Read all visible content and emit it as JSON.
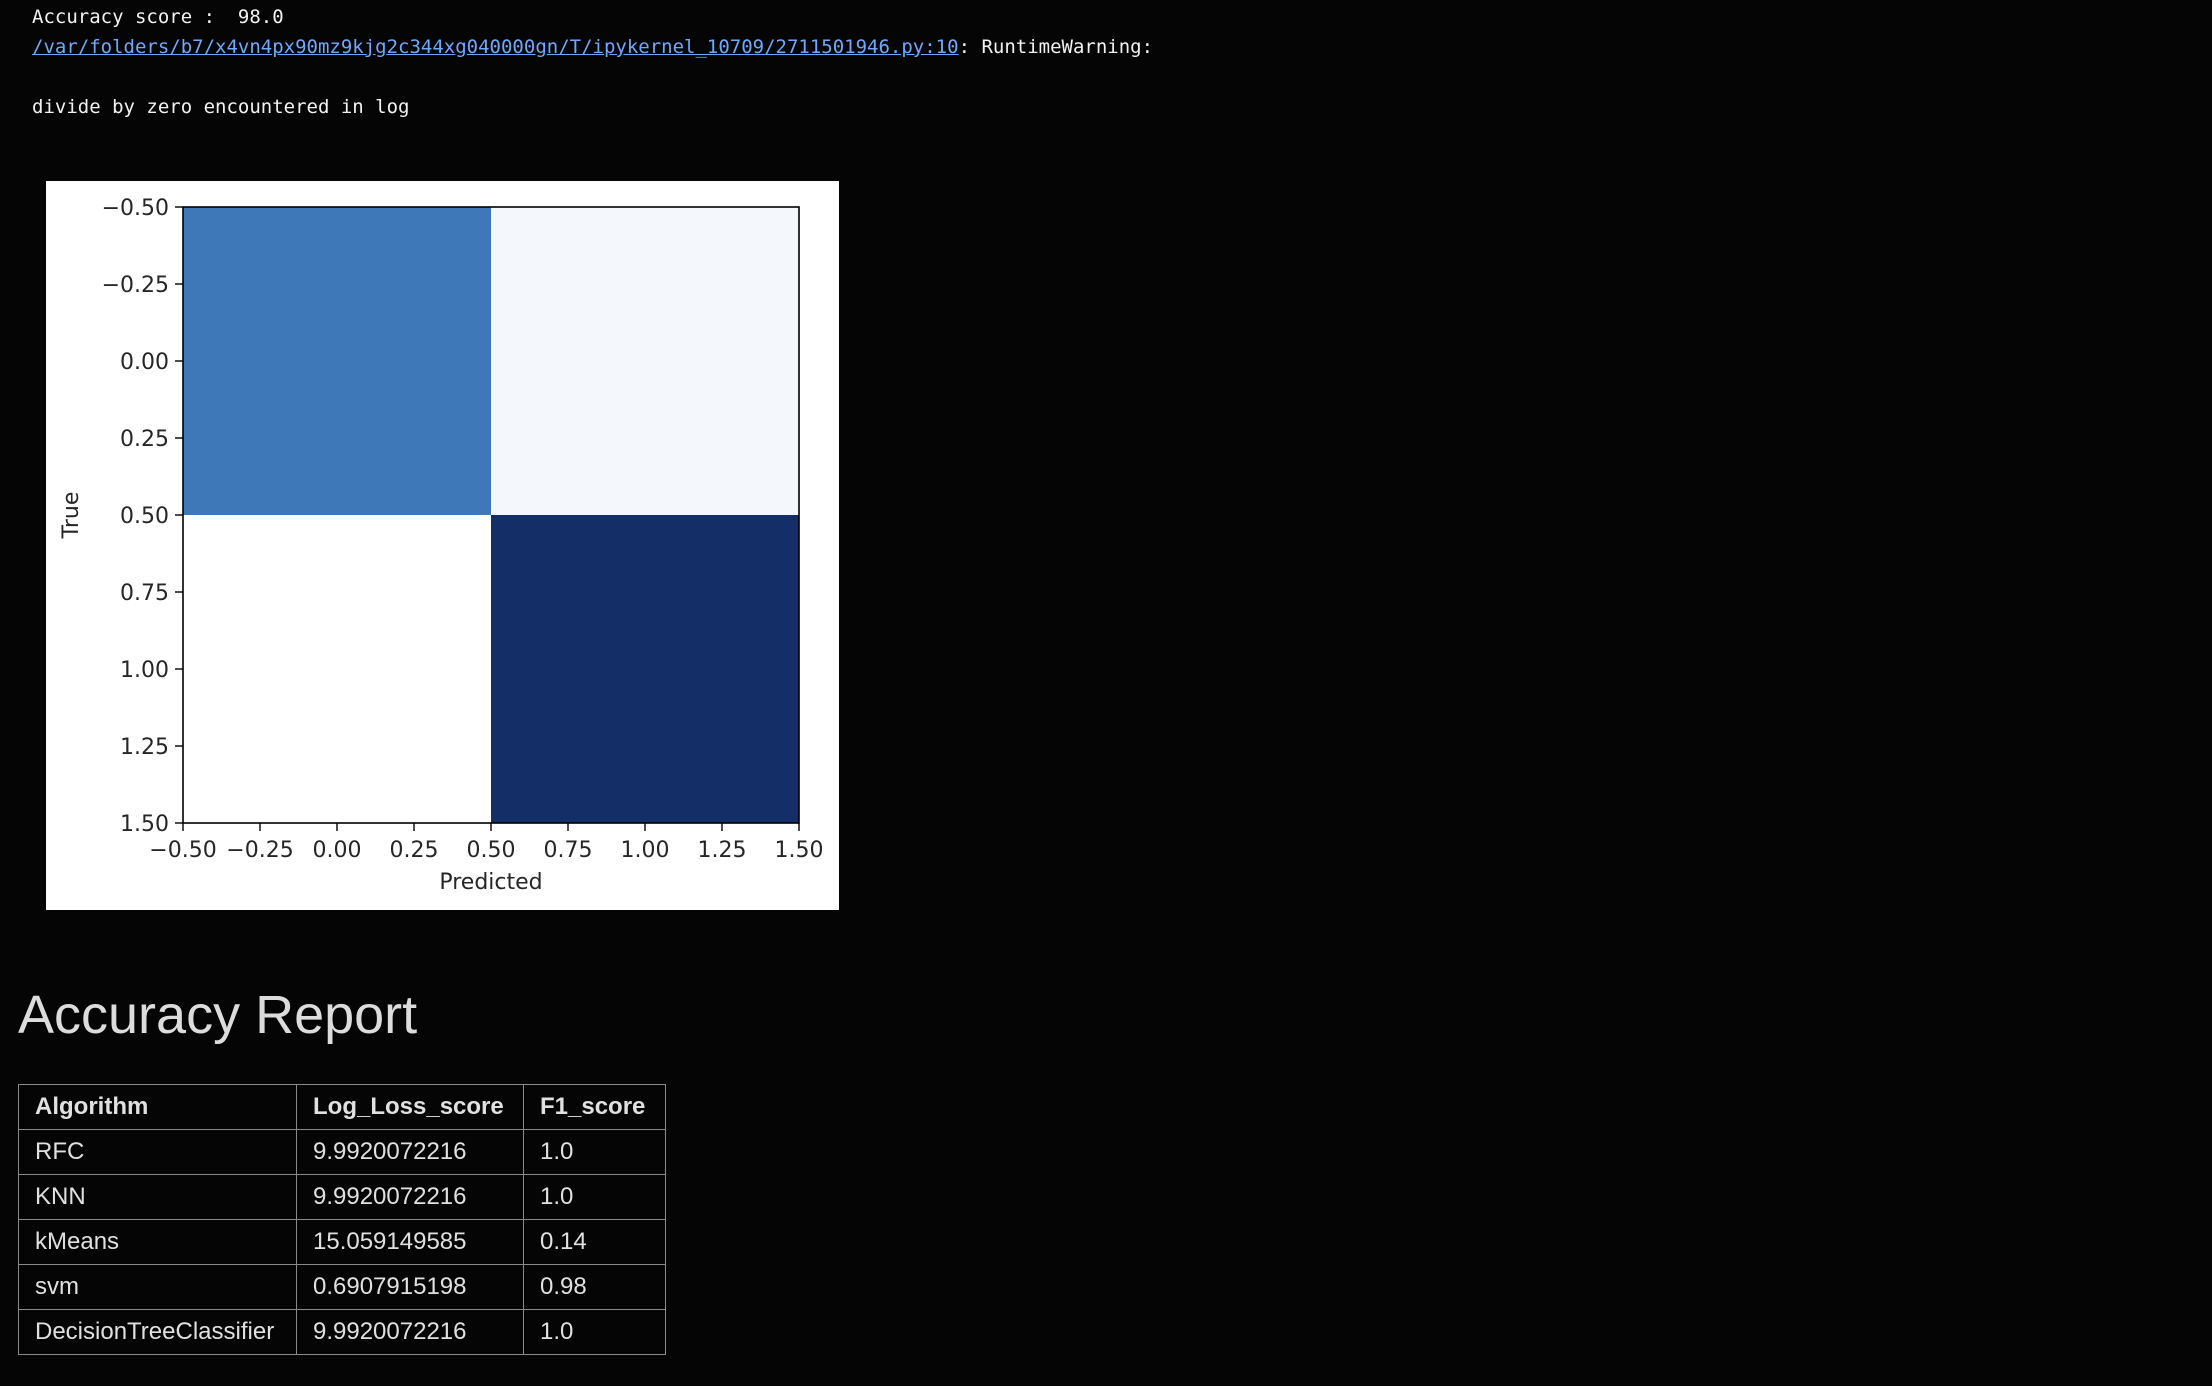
{
  "output": {
    "accuracy_line": "Accuracy score :  98.0",
    "warning_path": "/var/folders/b7/x4vn4px90mz9kjg2c344xg040000gn/T/ipykernel_10709/2711501946.py:10",
    "warning_type": ": RuntimeWarning:",
    "warning_message": "divide by zero encountered in log"
  },
  "chart_data": {
    "type": "heatmap",
    "xlabel": "Predicted",
    "ylabel": "True",
    "xlim": [
      -0.5,
      1.5
    ],
    "ylim": [
      1.5,
      -0.5
    ],
    "x_ticks": [
      "−0.50",
      "−0.25",
      "0.00",
      "0.25",
      "0.50",
      "0.75",
      "1.00",
      "1.25",
      "1.50"
    ],
    "y_ticks": [
      "−0.50",
      "−0.25",
      "0.00",
      "0.25",
      "0.50",
      "0.75",
      "1.00",
      "1.25",
      "1.50"
    ],
    "cells": [
      {
        "row": 0,
        "col": 0,
        "color": "#3f78b9"
      },
      {
        "row": 0,
        "col": 1,
        "color": "#f4f8fd"
      },
      {
        "row": 1,
        "col": 0,
        "color": "#ffffff"
      },
      {
        "row": 1,
        "col": 1,
        "color": "#142f68"
      }
    ],
    "colormap": "Blues"
  },
  "report": {
    "title": "Accuracy Report",
    "columns": [
      "Algorithm",
      "Log_Loss_score",
      "F1_score"
    ],
    "rows": [
      [
        "RFC",
        "9.9920072216",
        "1.0"
      ],
      [
        "KNN",
        "9.9920072216",
        "1.0"
      ],
      [
        "kMeans",
        "15.059149585",
        "0.14"
      ],
      [
        "svm",
        "0.6907915198",
        "0.98"
      ],
      [
        "DecisionTreeClassifier",
        "9.9920072216",
        "1.0"
      ]
    ]
  }
}
